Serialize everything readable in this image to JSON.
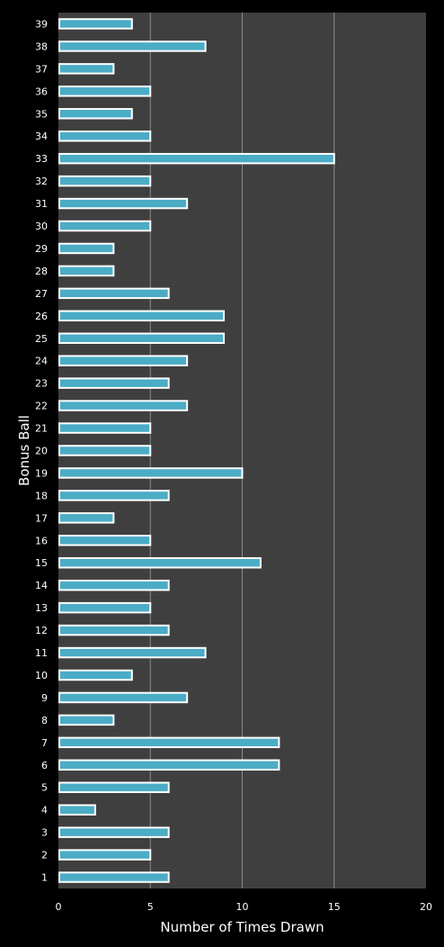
{
  "chart_data": {
    "type": "bar",
    "orientation": "horizontal",
    "title": "",
    "xlabel": "Number of Times Drawn",
    "ylabel": "Bonus Ball",
    "xlim": [
      0,
      20
    ],
    "xticks": [
      "0",
      "5",
      "10",
      "15",
      "20"
    ],
    "grid": true,
    "categories": [
      "1",
      "2",
      "3",
      "4",
      "5",
      "6",
      "7",
      "8",
      "9",
      "10",
      "11",
      "12",
      "13",
      "14",
      "15",
      "16",
      "17",
      "18",
      "19",
      "20",
      "21",
      "22",
      "23",
      "24",
      "25",
      "26",
      "27",
      "28",
      "29",
      "30",
      "31",
      "32",
      "33",
      "34",
      "35",
      "36",
      "37",
      "38",
      "39"
    ],
    "values": [
      6,
      5,
      6,
      2,
      6,
      12,
      12,
      3,
      7,
      4,
      8,
      6,
      5,
      6,
      11,
      5,
      3,
      6,
      10,
      5,
      5,
      7,
      6,
      7,
      9,
      9,
      6,
      3,
      3,
      5,
      7,
      5,
      15,
      5,
      4,
      5,
      3,
      8,
      4
    ],
    "colors": {
      "background": "#000000",
      "plot_area": "#3f3f3f",
      "bar_fill": "#4bacc6",
      "bar_border": "#ffffff",
      "grid": "#8c8c8c",
      "text": "#ffffff"
    }
  }
}
